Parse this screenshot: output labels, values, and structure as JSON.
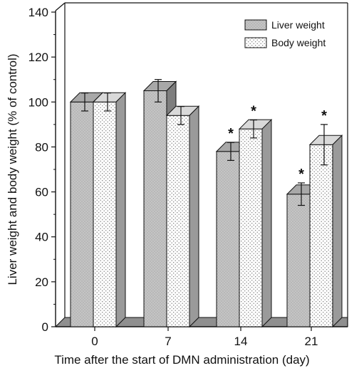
{
  "chart_data": {
    "type": "bar",
    "title": "",
    "xlabel": "Time after the start of DMN administration (day)",
    "ylabel": "Liver weight and body weight (% of control)",
    "ylim": [
      0,
      140
    ],
    "yticks": [
      0,
      20,
      40,
      60,
      80,
      100,
      120,
      140
    ],
    "categories": [
      "0",
      "7",
      "14",
      "21"
    ],
    "series": [
      {
        "name": "Liver weight",
        "values": [
          100,
          105,
          78,
          59
        ],
        "errors": [
          4,
          5,
          4,
          5
        ],
        "significant": [
          false,
          false,
          true,
          true
        ],
        "fill": "#c8c8c8"
      },
      {
        "name": "Body weight",
        "values": [
          100,
          94,
          88,
          81
        ],
        "errors": [
          4,
          4,
          4,
          9
        ],
        "significant": [
          false,
          false,
          true,
          true
        ],
        "fill": "#ffffff"
      }
    ],
    "significance_marker": "*",
    "legend_position": "top-right",
    "grid": false,
    "style": "3d"
  }
}
